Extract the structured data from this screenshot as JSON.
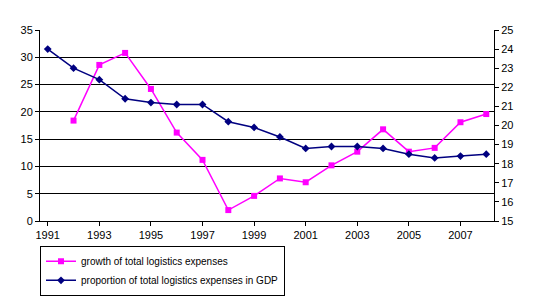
{
  "chart_data": {
    "type": "line",
    "categories": [
      "1991",
      null,
      "1993",
      null,
      "1995",
      null,
      "1997",
      null,
      "1999",
      null,
      "2001",
      null,
      "2003",
      null,
      "2005",
      null,
      "2007",
      null
    ],
    "series": [
      {
        "name": "growth of total logistics expenses",
        "color": "#ff00ff",
        "marker": "square",
        "values": [
          null,
          18.4,
          28.6,
          30.8,
          24.2,
          16.2,
          11.2,
          2.0,
          4.6,
          7.8,
          7.1,
          10.2,
          12.7,
          16.8,
          12.7,
          13.4,
          18.1,
          19.6
        ]
      },
      {
        "name": "proportion of total logistics expenses in GDP",
        "color": "#000080",
        "marker": "diamond",
        "axis": "y2",
        "values": [
          24.0,
          23.0,
          22.4,
          21.4,
          21.2,
          21.1,
          21.1,
          20.2,
          19.9,
          19.4,
          18.8,
          18.9,
          18.9,
          18.8,
          18.5,
          18.3,
          18.4,
          18.5
        ]
      }
    ],
    "ylim": [
      0,
      35
    ],
    "yticks": [
      0,
      5,
      10,
      15,
      20,
      25,
      30,
      35
    ],
    "y2lim": [
      15,
      25
    ],
    "y2ticks": [
      15,
      16,
      17,
      18,
      19,
      20,
      21,
      22,
      23,
      24,
      25
    ],
    "grid": true,
    "legend": "bottom"
  }
}
